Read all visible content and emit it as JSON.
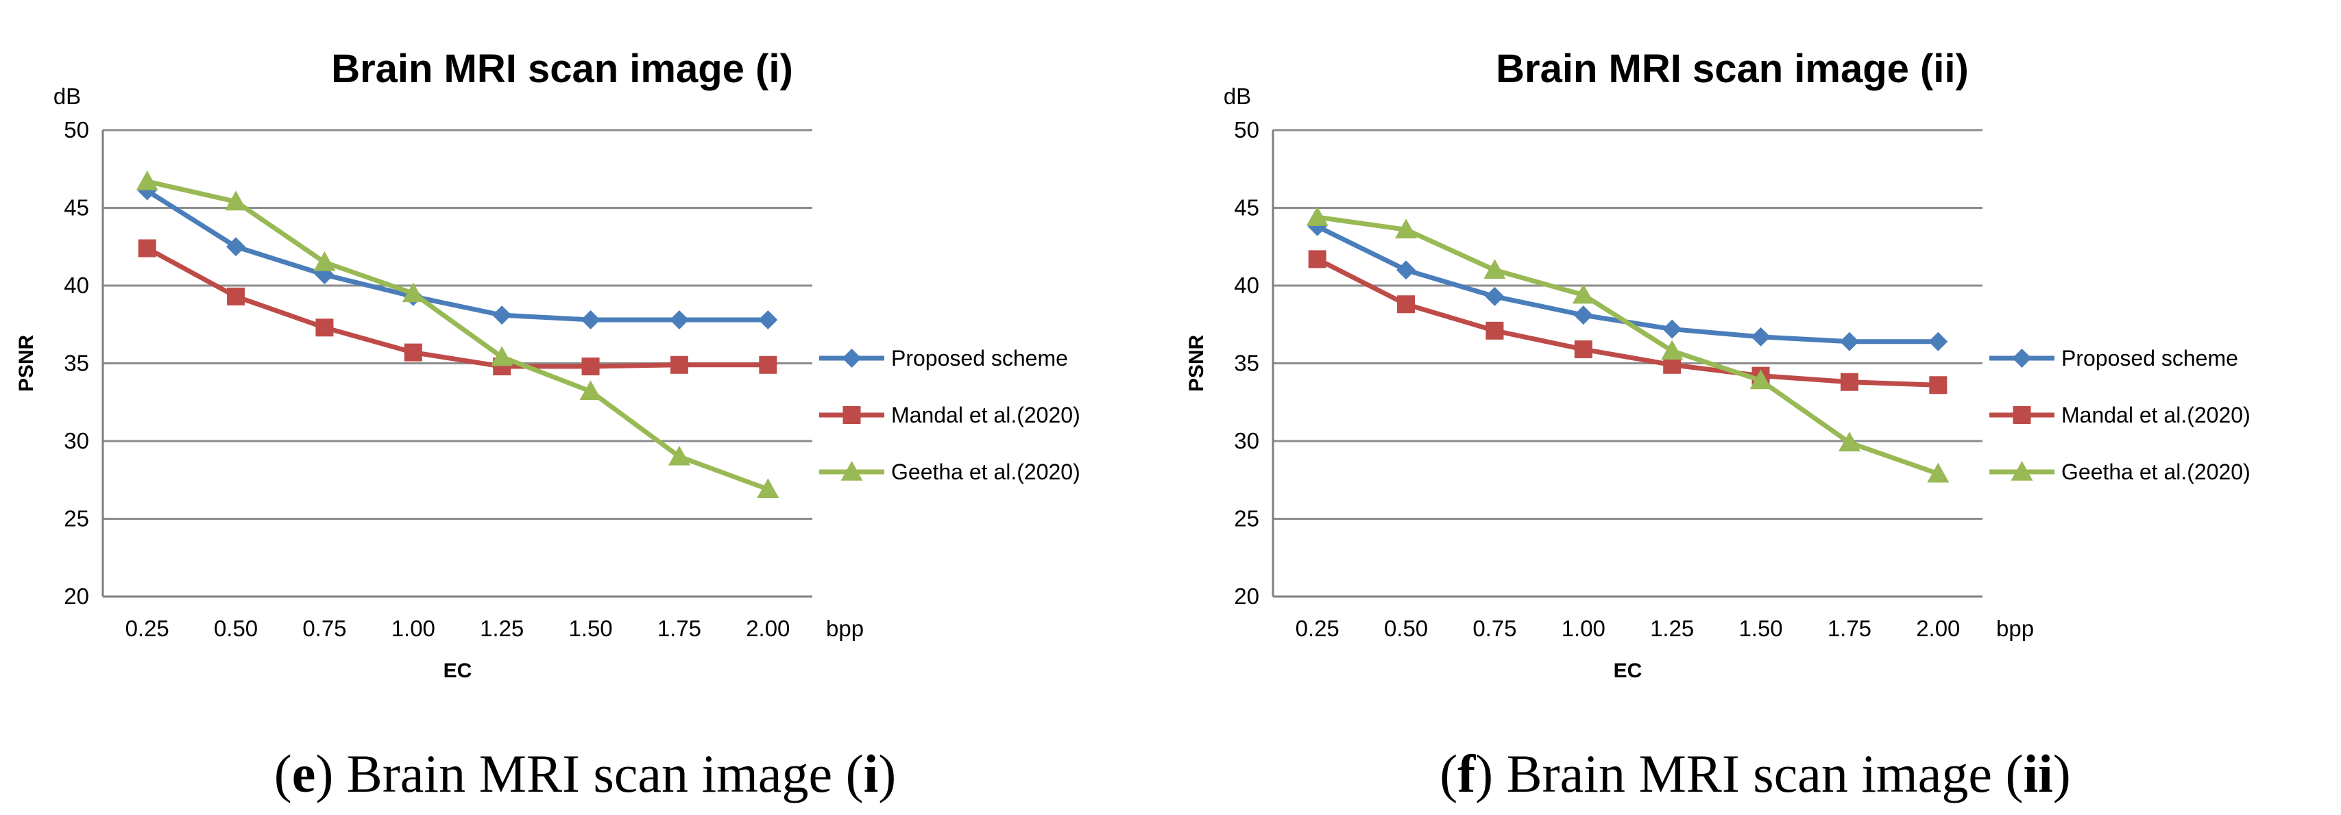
{
  "colors": {
    "proposed": "#4A7EBB",
    "mandal": "#BE4B48",
    "geetha": "#98B954",
    "grid": "#8C8C8C",
    "axis": "#7F7F7F"
  },
  "chart_data": [
    {
      "type": "line",
      "title": "Brain MRI scan image (i)",
      "xlabel": "EC",
      "ylabel": "PSNR",
      "x_unit": "bpp",
      "y_unit": "dB",
      "categories": [
        "0.25",
        "0.50",
        "0.75",
        "1.00",
        "1.25",
        "1.50",
        "1.75",
        "2.00"
      ],
      "y_ticks": [
        "20",
        "25",
        "30",
        "35",
        "40",
        "45",
        "50"
      ],
      "ylim": [
        20,
        50
      ],
      "grid": true,
      "legend_position": "right",
      "series": [
        {
          "name": "Proposed scheme",
          "marker": "diamond",
          "values": [
            46.1,
            42.5,
            40.7,
            39.3,
            38.1,
            37.8,
            37.8,
            37.8
          ]
        },
        {
          "name": "Mandal et al.(2020)",
          "marker": "square",
          "values": [
            42.4,
            39.3,
            37.3,
            35.7,
            34.8,
            34.8,
            34.9,
            34.9
          ]
        },
        {
          "name": "Geetha et al.(2020)",
          "marker": "triangle",
          "values": [
            46.7,
            45.4,
            41.5,
            39.5,
            35.4,
            33.2,
            29.0,
            26.9
          ]
        }
      ]
    },
    {
      "type": "line",
      "title": "Brain MRI scan image (ii)",
      "xlabel": "EC",
      "ylabel": "PSNR",
      "x_unit": "bpp",
      "y_unit": "dB",
      "categories": [
        "0.25",
        "0.50",
        "0.75",
        "1.00",
        "1.25",
        "1.50",
        "1.75",
        "2.00"
      ],
      "y_ticks": [
        "20",
        "25",
        "30",
        "35",
        "40",
        "45",
        "50"
      ],
      "ylim": [
        20,
        50
      ],
      "grid": true,
      "legend_position": "right",
      "series": [
        {
          "name": "Proposed scheme",
          "marker": "diamond",
          "values": [
            43.8,
            41.0,
            39.3,
            38.1,
            37.2,
            36.7,
            36.4,
            36.4
          ]
        },
        {
          "name": "Mandal et al.(2020)",
          "marker": "square",
          "values": [
            41.7,
            38.8,
            37.1,
            35.9,
            34.9,
            34.2,
            33.8,
            33.6
          ]
        },
        {
          "name": "Geetha et al.(2020)",
          "marker": "triangle",
          "values": [
            44.4,
            43.6,
            41.0,
            39.4,
            35.8,
            33.9,
            29.9,
            27.9
          ]
        }
      ]
    }
  ],
  "captions": [
    {
      "letter": "e",
      "text_before": ") Brain MRI scan image (",
      "roman": "i",
      "text_after": ")"
    },
    {
      "letter": "f",
      "text_before": ") Brain MRI scan image (",
      "roman": "ii",
      "text_after": ")"
    }
  ]
}
